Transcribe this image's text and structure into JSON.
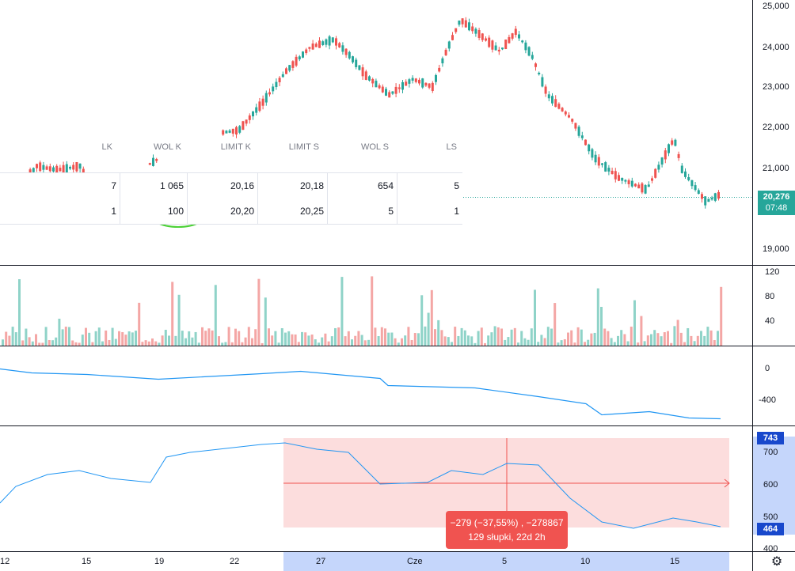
{
  "price_axis": {
    "labels": [
      "25,000",
      "24,000",
      "23,000",
      "22,000",
      "21,000",
      "19,000"
    ],
    "current_price": "20,276",
    "countdown": "07:48"
  },
  "volume_axis": {
    "labels": [
      "120",
      "80",
      "40"
    ]
  },
  "obv_axis": {
    "labels": [
      "0",
      "-400"
    ]
  },
  "cumulative_axis": {
    "labels": [
      "700",
      "600",
      "500",
      "400"
    ],
    "top_tag": "743",
    "bottom_tag": "464"
  },
  "time_axis": {
    "labels": [
      "12",
      "15",
      "19",
      "22",
      "27",
      "Cze",
      "5",
      "10",
      "15"
    ]
  },
  "orderbook": {
    "headers": [
      "LK",
      "WOL K",
      "LIMIT K",
      "LIMIT S",
      "WOL S",
      "LS"
    ],
    "rows": [
      [
        "7",
        "1 065",
        "20,16",
        "20,18",
        "654",
        "5"
      ],
      [
        "1",
        "100",
        "20,20",
        "20,25",
        "5",
        "1"
      ]
    ]
  },
  "measure_tooltip": {
    "line1": "−279 (−37,55%) , −278867",
    "line2": "129 słupki, 22d 2h"
  },
  "colors": {
    "up": "#26a69a",
    "down": "#ef5350",
    "vol_up": "#8fd3c8",
    "vol_down": "#f4a6a5",
    "line": "#2196f3",
    "measure_fill": "#fbd7d7",
    "measure_line": "#ef5350",
    "highlight_axis": "#c5d6fb",
    "price_tag": "#26a69a",
    "tag_blue": "#1848cc",
    "circle": "#4cd137"
  },
  "icons": {
    "settings": "gear-icon"
  }
}
